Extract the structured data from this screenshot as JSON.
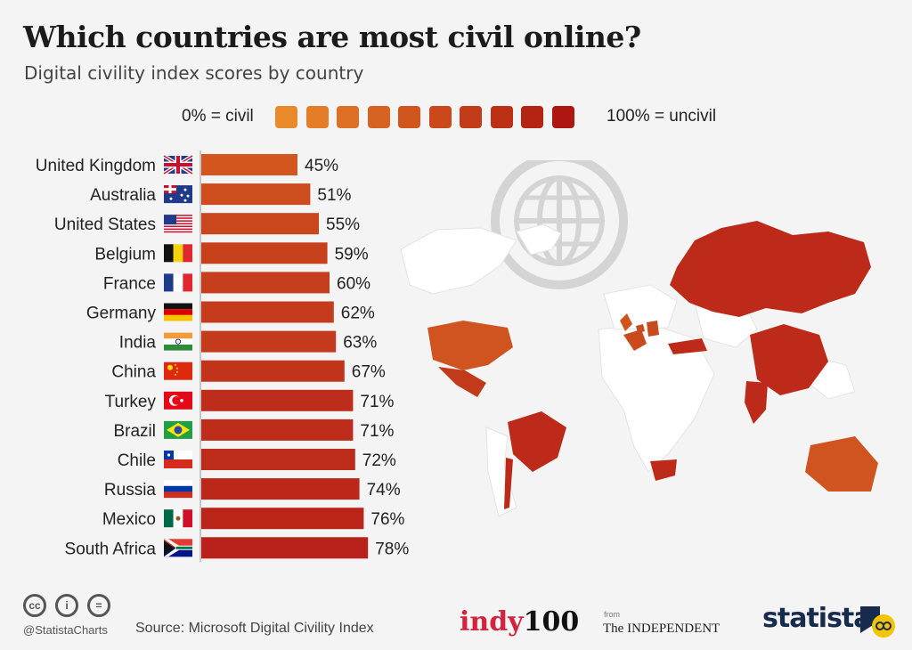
{
  "header": {
    "title": "Which countries are most civil online?",
    "subtitle": "Digital civility index scores by country"
  },
  "legend": {
    "min_label": "0% = civil",
    "max_label": "100% = uncivil",
    "swatch_colors": [
      "#e8892a",
      "#e37d27",
      "#dd7024",
      "#d66321",
      "#d0561e",
      "#c9491b",
      "#c33c19",
      "#bc3016",
      "#b52313",
      "#ae1611"
    ]
  },
  "chart_data": {
    "type": "bar",
    "orientation": "horizontal",
    "categories": [
      "United Kingdom",
      "Australia",
      "United States",
      "Belgium",
      "France",
      "Germany",
      "India",
      "China",
      "Turkey",
      "Brazil",
      "Chile",
      "Russia",
      "Mexico",
      "South Africa"
    ],
    "values": [
      45,
      51,
      55,
      59,
      60,
      62,
      63,
      67,
      71,
      71,
      72,
      74,
      76,
      78
    ],
    "value_labels": [
      "45%",
      "51%",
      "55%",
      "59%",
      "60%",
      "62%",
      "63%",
      "67%",
      "71%",
      "71%",
      "72%",
      "74%",
      "76%",
      "78%"
    ],
    "flag_icons": [
      "uk-flag-icon",
      "australia-flag-icon",
      "usa-flag-icon",
      "belgium-flag-icon",
      "france-flag-icon",
      "germany-flag-icon",
      "india-flag-icon",
      "china-flag-icon",
      "turkey-flag-icon",
      "brazil-flag-icon",
      "chile-flag-icon",
      "russia-flag-icon",
      "mexico-flag-icon",
      "south-africa-flag-icon"
    ],
    "xlim": [
      0,
      100
    ],
    "unit": "%",
    "grid": false,
    "color_low": "#d2561e",
    "color_high": "#b8221a"
  },
  "map": {
    "icon": "globe-icon",
    "highlight_color": "#bd2a1a",
    "base_color": "#ffffff"
  },
  "footer": {
    "license_icons": [
      "cc-icon",
      "by-icon",
      "nd-icon"
    ],
    "license_glyphs": [
      "cc",
      "i",
      "="
    ],
    "handle": "@StatistaCharts",
    "source": "Source: Microsoft Digital Civility Index",
    "indy_part1": "indy",
    "indy_part2": "100",
    "from_label": "from",
    "independent": "The INDEPENDENT",
    "statista": "statista"
  }
}
